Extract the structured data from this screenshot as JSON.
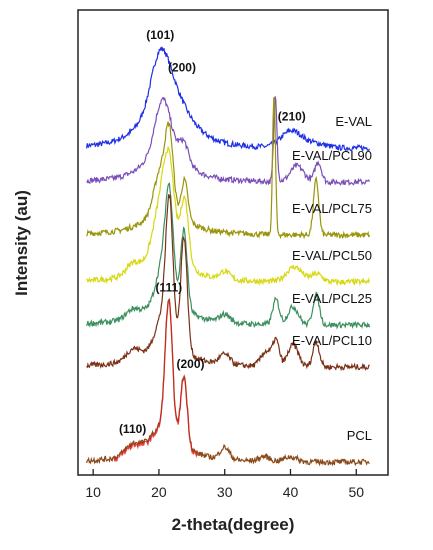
{
  "chart_data": {
    "type": "line",
    "title": "",
    "xlabel": "2-theta(degree)",
    "ylabel": "Intensity (au)",
    "xlim": [
      8,
      53
    ],
    "xticks": [
      10,
      20,
      30,
      40,
      50
    ],
    "yticks": false,
    "grid": false,
    "legend": "none (series labelled directly at right end of each trace)",
    "series": [
      {
        "name": "E-VAL",
        "color": "#1f2fe6",
        "baseline": 0.16,
        "peaks": [
          {
            "x": 20.2,
            "h": 0.55,
            "w": 1.4
          },
          {
            "x": 20.6,
            "h": 0.28,
            "w": 3.2
          },
          {
            "x": 22.6,
            "h": 0.16,
            "w": 1.6
          },
          {
            "x": 25.0,
            "h": 0.05,
            "w": 2.5
          },
          {
            "x": 40.2,
            "h": 0.17,
            "w": 1.6
          },
          {
            "x": 44.0,
            "h": 0.04,
            "w": 1.5
          }
        ]
      },
      {
        "name": "E-VAL/PCL90",
        "color": "#7b4fb8",
        "baseline": 0.1,
        "peaks": [
          {
            "x": 20.6,
            "h": 0.55,
            "w": 1.2
          },
          {
            "x": 21.0,
            "h": 0.22,
            "w": 3.0
          },
          {
            "x": 23.8,
            "h": 0.2,
            "w": 0.7
          },
          {
            "x": 37.7,
            "h": 0.85,
            "w": 0.25
          },
          {
            "x": 41.0,
            "h": 0.16,
            "w": 1.0
          },
          {
            "x": 44.2,
            "h": 0.2,
            "w": 0.5
          }
        ]
      },
      {
        "name": "E-VAL/PCL75",
        "color": "#9a950c",
        "baseline": 0.1,
        "peaks": [
          {
            "x": 20.3,
            "h": 0.45,
            "w": 1.0
          },
          {
            "x": 21.6,
            "h": 0.7,
            "w": 0.6
          },
          {
            "x": 21.0,
            "h": 0.15,
            "w": 3.0
          },
          {
            "x": 23.9,
            "h": 0.4,
            "w": 0.5
          },
          {
            "x": 37.5,
            "h": 1.4,
            "w": 0.22
          },
          {
            "x": 43.9,
            "h": 0.55,
            "w": 0.4
          }
        ]
      },
      {
        "name": "E-VAL/PCL50",
        "color": "#d8d810",
        "baseline": 0.1,
        "peaks": [
          {
            "x": 16.0,
            "h": 0.1,
            "w": 1.0
          },
          {
            "x": 20.4,
            "h": 0.55,
            "w": 1.2
          },
          {
            "x": 21.6,
            "h": 0.7,
            "w": 0.8
          },
          {
            "x": 21.0,
            "h": 0.2,
            "w": 3.0
          },
          {
            "x": 23.9,
            "h": 0.65,
            "w": 0.6
          },
          {
            "x": 30.0,
            "h": 0.08,
            "w": 0.8
          },
          {
            "x": 40.6,
            "h": 0.15,
            "w": 1.2
          },
          {
            "x": 44.0,
            "h": 0.08,
            "w": 0.8
          }
        ]
      },
      {
        "name": "E-VAL/PCL25",
        "color": "#3c8f5e",
        "baseline": 0.1,
        "peaks": [
          {
            "x": 16.0,
            "h": 0.08,
            "w": 1.0
          },
          {
            "x": 20.6,
            "h": 0.4,
            "w": 1.0
          },
          {
            "x": 21.6,
            "h": 0.95,
            "w": 0.6
          },
          {
            "x": 21.0,
            "h": 0.15,
            "w": 3.0
          },
          {
            "x": 23.8,
            "h": 0.8,
            "w": 0.5
          },
          {
            "x": 30.0,
            "h": 0.08,
            "w": 0.8
          },
          {
            "x": 37.8,
            "h": 0.25,
            "w": 0.5
          },
          {
            "x": 40.4,
            "h": 0.18,
            "w": 0.8
          },
          {
            "x": 43.9,
            "h": 0.3,
            "w": 0.5
          }
        ]
      },
      {
        "name": "E-VAL/PCL10",
        "color": "#7a3016",
        "baseline": 0.1,
        "peaks": [
          {
            "x": 16.0,
            "h": 0.1,
            "w": 1.0
          },
          {
            "x": 20.5,
            "h": 0.3,
            "w": 1.0
          },
          {
            "x": 21.6,
            "h": 1.35,
            "w": 0.55
          },
          {
            "x": 21.0,
            "h": 0.15,
            "w": 3.0
          },
          {
            "x": 23.8,
            "h": 1.15,
            "w": 0.5
          },
          {
            "x": 30.0,
            "h": 0.1,
            "w": 0.8
          },
          {
            "x": 36.3,
            "h": 0.15,
            "w": 0.8
          },
          {
            "x": 37.8,
            "h": 0.25,
            "w": 0.5
          },
          {
            "x": 40.4,
            "h": 0.22,
            "w": 0.8
          },
          {
            "x": 43.9,
            "h": 0.25,
            "w": 0.5
          }
        ]
      },
      {
        "name": "PCL",
        "color": "#8a4a1a",
        "accent": "#d62020",
        "baseline": 0.1,
        "peaks": [
          {
            "x": 16.0,
            "h": 0.1,
            "w": 1.2
          },
          {
            "x": 20.5,
            "h": 0.15,
            "w": 1.5
          },
          {
            "x": 21.5,
            "h": 1.3,
            "w": 0.55
          },
          {
            "x": 21.0,
            "h": 0.15,
            "w": 3.0
          },
          {
            "x": 23.8,
            "h": 0.7,
            "w": 0.5
          },
          {
            "x": 30.0,
            "h": 0.12,
            "w": 0.7
          },
          {
            "x": 36.0,
            "h": 0.05,
            "w": 0.8
          },
          {
            "x": 40.0,
            "h": 0.05,
            "w": 1.0
          }
        ]
      }
    ],
    "annotations": [
      {
        "text": "(101)",
        "series": "E-VAL",
        "x": 20.2
      },
      {
        "text": "(200)",
        "series": "E-VAL",
        "x": 23.5
      },
      {
        "text": "(210)",
        "series": "E-VAL",
        "x": 40.2
      },
      {
        "text": "(111)",
        "series": "PCL",
        "x": 21.5
      },
      {
        "text": "(200)",
        "series": "PCL",
        "x": 24.8
      },
      {
        "text": "(110)",
        "series": "PCL",
        "x": 16.0
      }
    ]
  }
}
